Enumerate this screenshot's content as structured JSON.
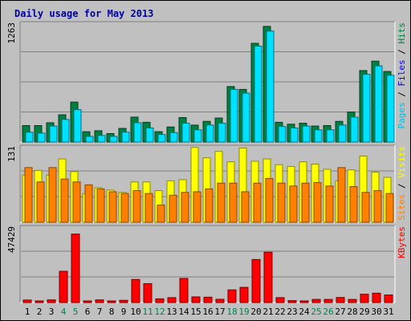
{
  "chart_data": {
    "type": "bar",
    "title": "Daily usage for May 2013",
    "categories": [
      "1",
      "2",
      "3",
      "4",
      "5",
      "6",
      "7",
      "8",
      "9",
      "10",
      "11",
      "12",
      "13",
      "14",
      "15",
      "16",
      "17",
      "18",
      "19",
      "20",
      "21",
      "22",
      "23",
      "24",
      "25",
      "26",
      "27",
      "28",
      "29",
      "30",
      "31"
    ],
    "weekend_days": [
      "4",
      "5",
      "11",
      "12",
      "18",
      "19",
      "25",
      "26"
    ],
    "panels": [
      {
        "id": "hits_files_pages",
        "ymax_label": "1263",
        "ymax": 1263,
        "legend": [
          {
            "text": "Pages",
            "color": "#00c0e0"
          },
          {
            "text": " / ",
            "color": "#000000"
          },
          {
            "text": "Files",
            "color": "#0000ff"
          },
          {
            "text": " / ",
            "color": "#000000"
          },
          {
            "text": "Hits",
            "color": "#008040"
          }
        ],
        "series": [
          {
            "name": "Hits",
            "color": "#008040",
            "values": [
              175,
              175,
              205,
              290,
              425,
              110,
              120,
              90,
              145,
              265,
              210,
              110,
              160,
              260,
              180,
              220,
              255,
              590,
              560,
              1050,
              1230,
              210,
              190,
              200,
              170,
              175,
              220,
              320,
              760,
              860,
              750
            ]
          },
          {
            "name": "Files",
            "color": "#00e0ff",
            "values": [
              105,
              95,
              170,
              240,
              345,
              60,
              70,
              60,
              105,
              205,
              150,
              80,
              100,
              200,
              130,
              180,
              200,
              560,
              520,
              1020,
              1180,
              165,
              150,
              170,
              130,
              130,
              180,
              265,
              720,
              810,
              710
            ]
          },
          {
            "name": "Pages",
            "color": "#00c0e0",
            "values": [
              105,
              95,
              170,
              240,
              345,
              60,
              70,
              60,
              105,
              205,
              150,
              80,
              100,
              200,
              130,
              180,
              200,
              560,
              520,
              1020,
              1180,
              165,
              150,
              170,
              130,
              130,
              180,
              265,
              720,
              810,
              710
            ]
          }
        ]
      },
      {
        "id": "visits_sites",
        "ymax_label": "131",
        "ymax": 131,
        "legend": [
          {
            "text": "Sites",
            "color": "#ff8000"
          },
          {
            "text": " / ",
            "color": "#000000"
          },
          {
            "text": "Visits",
            "color": "#ffff00"
          }
        ],
        "series": [
          {
            "name": "Visits",
            "color": "#ffff00",
            "values": [
              82,
              90,
              82,
              110,
              88,
              50,
              60,
              56,
              52,
              70,
              70,
              55,
              72,
              74,
              130,
              112,
              123,
              105,
              129,
              106,
              110,
              100,
              97,
              105,
              101,
              92,
              72,
              91,
              115,
              87,
              78
            ]
          },
          {
            "name": "Sites",
            "color": "#ff8000",
            "values": [
              95,
              70,
              95,
              75,
              70,
              65,
              58,
              53,
              50,
              55,
              50,
              30,
              47,
              52,
              53,
              58,
              68,
              68,
              53,
              68,
              76,
              68,
              63,
              68,
              69,
              63,
              95,
              62,
              52,
              55,
              50
            ]
          }
        ]
      },
      {
        "id": "kbytes",
        "ymax_label": "47429",
        "ymax": 47429,
        "legend": [
          {
            "text": "KBytes",
            "color": "#ff0000"
          }
        ],
        "series": [
          {
            "name": "KBytes",
            "color": "#ff0000",
            "values": [
              1700,
              1100,
              1800,
              21000,
              46000,
              1100,
              1800,
              1100,
              1500,
              15500,
              12700,
              2500,
              3300,
              16200,
              3800,
              3600,
              2200,
              8500,
              10200,
              28900,
              33800,
              3300,
              1300,
              1100,
              2100,
              2100,
              3400,
              2100,
              5600,
              6300,
              5100
            ]
          }
        ]
      }
    ]
  }
}
